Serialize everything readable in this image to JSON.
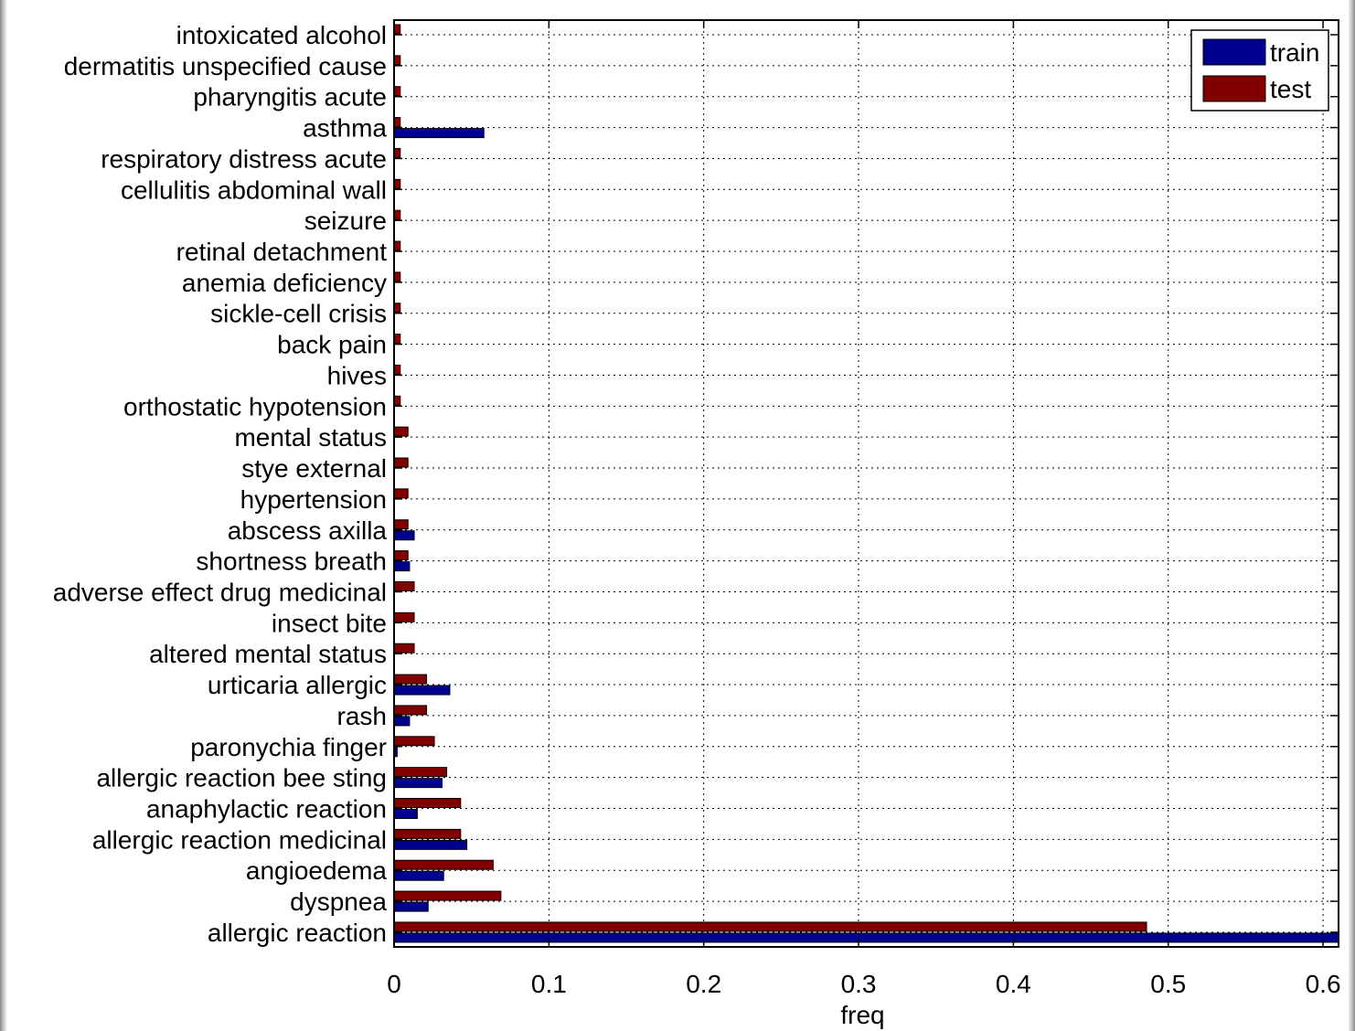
{
  "chart_data": {
    "type": "bar",
    "orientation": "horizontal",
    "title": "",
    "xlabel": "freq",
    "ylabel": "",
    "xlim": [
      0,
      0.61
    ],
    "xticks": [
      0,
      0.1,
      0.2,
      0.3,
      0.4,
      0.5,
      0.6
    ],
    "xtick_labels": [
      "0",
      "0.1",
      "0.2",
      "0.3",
      "0.4",
      "0.5",
      "0.6"
    ],
    "grid": true,
    "legend_position": "top-right",
    "categories": [
      "intoxicated alcohol",
      "dermatitis unspecified cause",
      "pharyngitis acute",
      "asthma",
      "respiratory distress acute",
      "cellulitis abdominal wall",
      "seizure",
      "retinal detachment",
      "anemia deficiency",
      "sickle-cell crisis",
      "back pain",
      "hives",
      "orthostatic hypotension",
      "mental status",
      "stye external",
      "hypertension",
      "abscess axilla",
      "shortness breath",
      "adverse effect drug medicinal",
      "insect bite",
      "altered mental status",
      "urticaria allergic",
      "rash",
      "paronychia finger",
      "allergic reaction bee sting",
      "anaphylactic reaction",
      "allergic reaction medicinal",
      "angioedema",
      "dyspnea",
      "allergic reaction"
    ],
    "series": [
      {
        "name": "train",
        "color": "#00008f",
        "values": [
          0,
          0,
          0,
          0.058,
          0,
          0,
          0,
          0,
          0,
          0,
          0,
          0,
          0,
          0,
          0,
          0,
          0.013,
          0.01,
          0,
          0,
          0,
          0.036,
          0.01,
          0.002,
          0.031,
          0.015,
          0.047,
          0.032,
          0.022,
          0.61
        ]
      },
      {
        "name": "test",
        "color": "#800000",
        "values": [
          0.004,
          0.004,
          0.004,
          0.004,
          0.004,
          0.004,
          0.004,
          0.004,
          0.004,
          0.004,
          0.004,
          0.004,
          0.004,
          0.009,
          0.009,
          0.009,
          0.009,
          0.009,
          0.013,
          0.013,
          0.013,
          0.021,
          0.021,
          0.026,
          0.034,
          0.043,
          0.043,
          0.064,
          0.069,
          0.486
        ]
      }
    ]
  }
}
